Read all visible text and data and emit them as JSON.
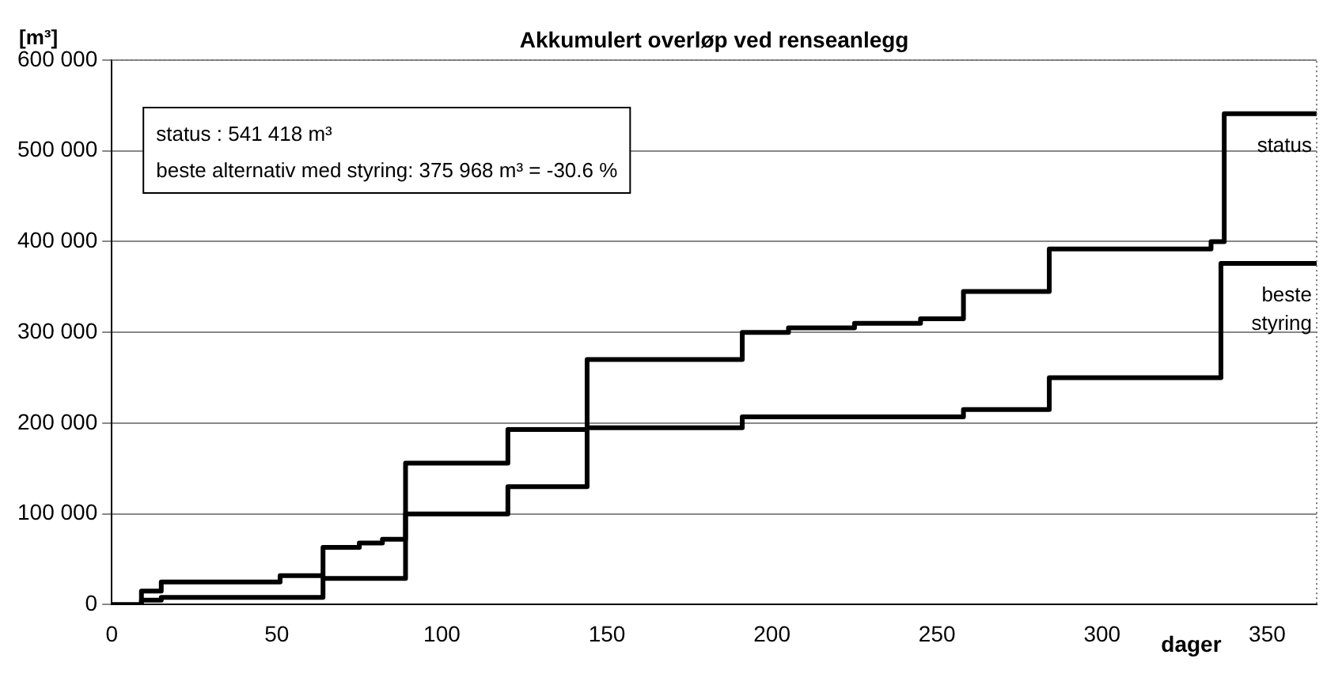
{
  "chart_data": {
    "type": "step",
    "title": "Akkumulert overløp ved renseanlegg",
    "xlabel": "dager",
    "ylabel": "[m³]",
    "xlim": [
      0,
      365
    ],
    "xticks": [
      0,
      50,
      100,
      150,
      200,
      250,
      300,
      350
    ],
    "ylim": [
      0,
      600000
    ],
    "yticks": [
      {
        "value": 0,
        "label": "0"
      },
      {
        "value": 100000,
        "label": "100 000"
      },
      {
        "value": 200000,
        "label": "200 000"
      },
      {
        "value": 300000,
        "label": "300 000"
      },
      {
        "value": 400000,
        "label": "400 000"
      },
      {
        "value": 500000,
        "label": "500 000"
      },
      {
        "value": 600000,
        "label": "600 000"
      }
    ],
    "grid": "y",
    "legend": false,
    "annotations": [
      "status : 541 418 m³",
      "beste alternativ med styring: 375 968 m³ = -30.6 %"
    ],
    "series": [
      {
        "name": "status",
        "color": "#000000",
        "x": [
          0,
          9,
          15,
          51,
          64,
          75,
          82,
          89,
          120,
          144,
          191,
          205,
          225,
          245,
          258,
          284,
          333,
          337,
          365
        ],
        "values": [
          0,
          15000,
          25000,
          32000,
          63000,
          68000,
          72000,
          100000,
          130000,
          270000,
          300000,
          305000,
          310000,
          315000,
          345000,
          392000,
          400000,
          541000,
          541000
        ]
      },
      {
        "name": "beste styring",
        "color": "#000000",
        "x": [
          0,
          9,
          15,
          64,
          89,
          120,
          144,
          191,
          258,
          284,
          336,
          365
        ],
        "values": [
          0,
          5000,
          8000,
          29000,
          156000,
          193000,
          195000,
          207000,
          215000,
          250000,
          376000,
          376000
        ]
      }
    ]
  }
}
